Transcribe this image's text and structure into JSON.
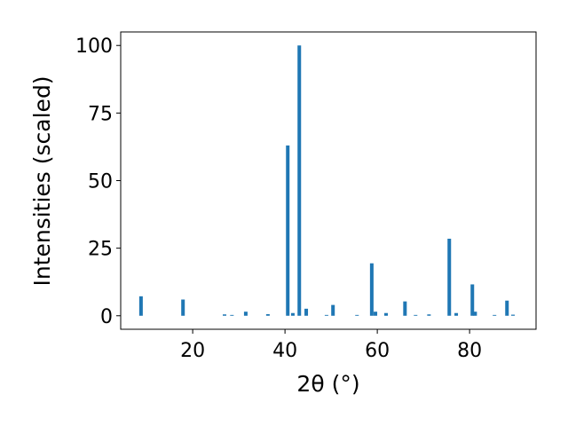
{
  "chart_data": {
    "type": "bar",
    "x_label": "2θ (°)",
    "y_label": "Intensities (scaled)",
    "x": [
      8.8,
      17.9,
      26.9,
      28.5,
      31.5,
      36.3,
      40.6,
      41.7,
      43.1,
      44.6,
      49.0,
      50.4,
      55.6,
      58.8,
      59.6,
      61.9,
      66.0,
      68.3,
      71.2,
      75.6,
      77.1,
      80.6,
      81.2,
      85.4,
      88.1,
      89.4
    ],
    "values": [
      7.2,
      6,
      0.5,
      0.3,
      1.5,
      0.6,
      63,
      1,
      100,
      2.6,
      0.3,
      4,
      0.3,
      19.4,
      1.5,
      1,
      5.3,
      0.3,
      0.5,
      28.5,
      1,
      11.6,
      1.5,
      0.3,
      5.6,
      0.4
    ],
    "color": "#1f77b4",
    "xlim": [
      4.4,
      94.4
    ],
    "xticks": [
      20,
      40,
      60,
      80
    ],
    "ylim": [
      -5,
      105
    ],
    "yticks": [
      0,
      25,
      50,
      75,
      100
    ],
    "grid": false
  }
}
